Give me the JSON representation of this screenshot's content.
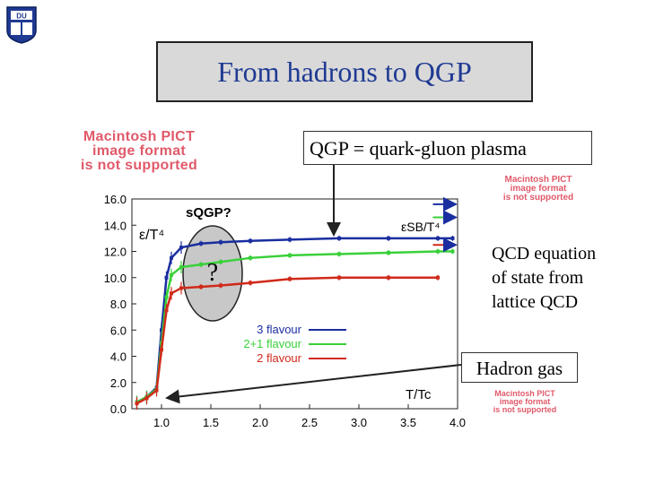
{
  "slide_title": "From hadrons to QGP",
  "logo_letters": "DU",
  "pict_notice_large": [
    "Macintosh PICT",
    "image format",
    "is not supported"
  ],
  "pict_notice_small_top": [
    "Macintosh PICT",
    "image format",
    "is not supported"
  ],
  "pict_notice_small_bottom": [
    "Macintosh PICT",
    "image format",
    "is not supported"
  ],
  "qgp_callout": "QGP = quark-gluon plasma",
  "qcd_note": [
    "QCD equation",
    "of state from",
    "lattice QCD"
  ],
  "hadron_callout": "Hadron gas",
  "question_mark": "?",
  "colors": {
    "pict_text": "#e05a6a",
    "title_text": "#1f3a93",
    "ellipse_fill": "#c8c8c8"
  },
  "chart_data": {
    "type": "line",
    "ylabel": "ε/T⁴",
    "xlabel": "T/Tc",
    "sb_label": "εSB/T⁴",
    "sqgp_label": "sQGP?",
    "xlim": [
      0.7,
      4.0
    ],
    "ylim": [
      0.0,
      16.0
    ],
    "x_ticks": [
      "1.0",
      "1.5",
      "2.0",
      "2.5",
      "3.0",
      "3.5",
      "4.0"
    ],
    "y_ticks": [
      "0.0",
      "2.0",
      "4.0",
      "6.0",
      "8.0",
      "10.0",
      "12.0",
      "14.0",
      "16.0"
    ],
    "series": [
      {
        "name": "3 flavour",
        "color": "#1a2ea0",
        "sb_limit": 15.6,
        "x": [
          0.75,
          0.85,
          0.95,
          1.0,
          1.05,
          1.1,
          1.2,
          1.4,
          1.6,
          1.9,
          2.3,
          2.8,
          3.3,
          3.8,
          3.95
        ],
        "y": [
          0.5,
          0.9,
          1.6,
          6.0,
          10.0,
          11.5,
          12.3,
          12.6,
          12.7,
          12.8,
          12.9,
          13.0,
          13.0,
          13.0,
          13.0
        ]
      },
      {
        "name": "2+1 flavour",
        "color": "#3ad03a",
        "sb_limit": 14.6,
        "x": [
          0.75,
          0.85,
          0.95,
          1.0,
          1.05,
          1.1,
          1.2,
          1.4,
          1.6,
          1.9,
          2.3,
          2.8,
          3.3,
          3.8,
          3.95
        ],
        "y": [
          0.5,
          0.9,
          1.5,
          5.0,
          8.5,
          10.2,
          10.8,
          11.0,
          11.2,
          11.5,
          11.7,
          11.8,
          11.9,
          12.0,
          12.0
        ]
      },
      {
        "name": "2 flavour",
        "color": "#d02a1a",
        "sb_limit": 12.5,
        "x": [
          0.75,
          0.85,
          0.95,
          1.0,
          1.05,
          1.1,
          1.2,
          1.4,
          1.6,
          1.9,
          2.3,
          2.8,
          3.3,
          3.8
        ],
        "y": [
          0.4,
          0.8,
          1.4,
          4.5,
          7.5,
          8.8,
          9.2,
          9.3,
          9.4,
          9.6,
          9.9,
          10.0,
          10.0,
          10.0
        ]
      }
    ]
  }
}
